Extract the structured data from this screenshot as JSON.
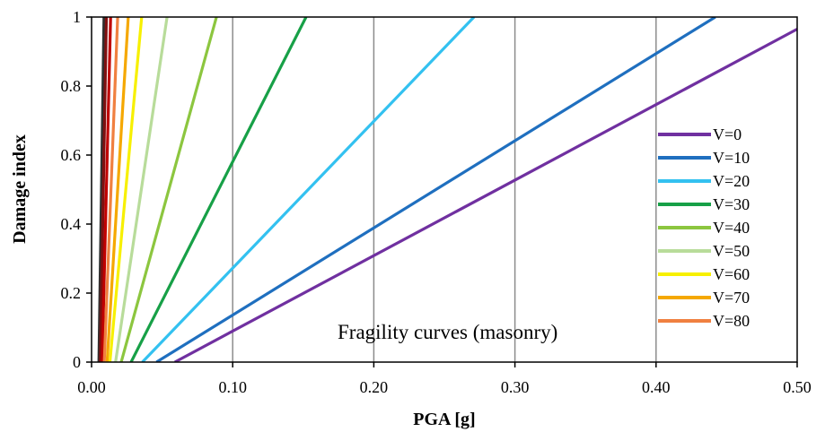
{
  "chart_data": {
    "type": "line",
    "title": "",
    "annotation": "Fragility curves (masonry)",
    "xlabel": "PGA  [g]",
    "ylabel": "Damage index",
    "xlim": [
      0,
      0.5
    ],
    "ylim": [
      0,
      1
    ],
    "x_ticks": [
      0,
      0.1,
      0.2,
      0.3,
      0.4,
      0.5
    ],
    "x_tick_labels": [
      "0.00",
      "0.10",
      "0.20",
      "0.30",
      "0.40",
      "0.50"
    ],
    "y_ticks": [
      0,
      0.2,
      0.4,
      0.6,
      0.8,
      1
    ],
    "y_tick_labels": [
      "0",
      "0.2",
      "0.4",
      "0.6",
      "0.8",
      "1"
    ],
    "grid": "vertical",
    "legend_position": "right",
    "series": [
      {
        "name": "V=0",
        "color": "#7030a0",
        "x": [
          0.059,
          0.5
        ],
        "y": [
          0,
          0.965
        ]
      },
      {
        "name": "V=10",
        "color": "#1f6fbf",
        "x": [
          0.046,
          0.442
        ],
        "y": [
          0,
          1
        ]
      },
      {
        "name": "V=20",
        "color": "#33c1f0",
        "x": [
          0.036,
          0.271
        ],
        "y": [
          0,
          1
        ]
      },
      {
        "name": "V=30",
        "color": "#17a047",
        "x": [
          0.028,
          0.152
        ],
        "y": [
          0,
          1
        ]
      },
      {
        "name": "V=40",
        "color": "#8cc63f",
        "x": [
          0.021,
          0.0885
        ],
        "y": [
          0,
          1
        ]
      },
      {
        "name": "V=50",
        "color": "#b8dc9a",
        "x": [
          0.017,
          0.0535
        ],
        "y": [
          0,
          1
        ]
      },
      {
        "name": "V=60",
        "color": "#f7f000",
        "x": [
          0.013,
          0.0355
        ],
        "y": [
          0,
          1
        ]
      },
      {
        "name": "V=70",
        "color": "#f5a800",
        "x": [
          0.011,
          0.026
        ],
        "y": [
          0,
          1
        ]
      },
      {
        "name": "V=80",
        "color": "#f08040",
        "x": [
          0.009,
          0.0185
        ],
        "y": [
          0,
          1
        ]
      },
      {
        "color": "#c00000",
        "x": [
          0.0075,
          0.0135
        ],
        "y": [
          0,
          1
        ]
      },
      {
        "color": "#7f1010",
        "x": [
          0.0062,
          0.0105
        ],
        "y": [
          0,
          1
        ]
      },
      {
        "color": "#303030",
        "x": [
          0.0052,
          0.0088
        ],
        "y": [
          0,
          1
        ]
      }
    ]
  }
}
